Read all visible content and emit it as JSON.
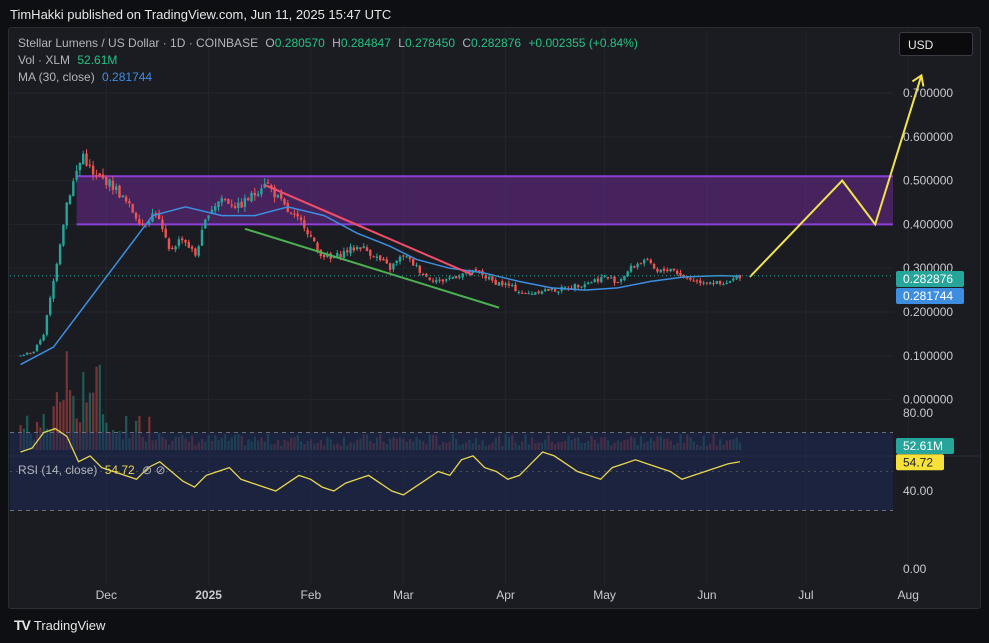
{
  "header": {
    "published": "TimHakki published on TradingView.com, Jun 11, 2025 15:47 UTC"
  },
  "legend": {
    "symbol": "Stellar Lumens / US Dollar · 1D · COINBASE",
    "o_label": "O",
    "o": "0.280570",
    "h_label": "H",
    "h": "0.284847",
    "l_label": "L",
    "l": "0.278450",
    "c_label": "C",
    "c": "0.282876",
    "change": "+0.002355 (+0.84%)",
    "vol_label": "Vol · XLM",
    "vol": "52.61M",
    "ma_label": "MA (30, close)",
    "ma": "0.281744",
    "rsi_label": "RSI (14, close)",
    "rsi": "54.72",
    "rsi_icons": "⊘ ⊘"
  },
  "currency": "USD",
  "footer": {
    "brand": "TradingView"
  },
  "colors": {
    "up": "#26a69a",
    "down": "#ef5350",
    "ma": "#3d8ee0",
    "zone": "#6a2a8e",
    "zone_line": "#8c3fd6",
    "projection": "#f2e34a",
    "rsi": "#e8d64f",
    "trend_red": "#f04e6a",
    "trend_green": "#4caf50"
  },
  "chart_data": [
    {
      "type": "candlestick",
      "title": "Stellar Lumens / US Dollar · 1D · COINBASE",
      "ylim": [
        -0.06,
        0.76
      ],
      "y_ticks": [
        "0.700000",
        "0.600000",
        "0.500000",
        "0.400000",
        "0.300000",
        "0.200000",
        "0.100000",
        "0.000000"
      ],
      "x_ticks": [
        "Dec",
        "2025",
        "Feb",
        "Mar",
        "Apr",
        "May",
        "Jun",
        "Jul",
        "Aug"
      ],
      "price_labels": [
        {
          "text": "0.282876",
          "color": "#26a69a"
        },
        {
          "text": "0.281744",
          "color": "#3d8ee0"
        }
      ],
      "volume_label": "52.61M",
      "series": [
        {
          "name": "XLM/USD close (approx.)",
          "points": [
            [
              "Nov 5",
              0.1
            ],
            [
              "Nov 9",
              0.11
            ],
            [
              "Nov 12",
              0.15
            ],
            [
              "Nov 15",
              0.27
            ],
            [
              "Nov 19",
              0.45
            ],
            [
              "Nov 22",
              0.52
            ],
            [
              "Nov 24",
              0.56
            ],
            [
              "Nov 27",
              0.51
            ],
            [
              "Dec 1",
              0.5
            ],
            [
              "Dec 4",
              0.48
            ],
            [
              "Dec 8",
              0.44
            ],
            [
              "Dec 12",
              0.4
            ],
            [
              "Dec 16",
              0.43
            ],
            [
              "Dec 20",
              0.34
            ],
            [
              "Dec 24",
              0.37
            ],
            [
              "Dec 28",
              0.33
            ],
            [
              "Jan 1",
              0.43
            ],
            [
              "Jan 5",
              0.46
            ],
            [
              "Jan 10",
              0.44
            ],
            [
              "Jan 15",
              0.47
            ],
            [
              "Jan 18",
              0.5
            ],
            [
              "Jan 22",
              0.46
            ],
            [
              "Jan 26",
              0.42
            ],
            [
              "Jan 30",
              0.4
            ],
            [
              "Feb 3",
              0.34
            ],
            [
              "Feb 7",
              0.32
            ],
            [
              "Feb 12",
              0.34
            ],
            [
              "Feb 16",
              0.35
            ],
            [
              "Feb 20",
              0.33
            ],
            [
              "Feb 25",
              0.3
            ],
            [
              "Mar 1",
              0.33
            ],
            [
              "Mar 4",
              0.31
            ],
            [
              "Mar 8",
              0.28
            ],
            [
              "Mar 12",
              0.27
            ],
            [
              "Mar 16",
              0.28
            ],
            [
              "Mar 20",
              0.29
            ],
            [
              "Mar 24",
              0.29
            ],
            [
              "Mar 28",
              0.27
            ],
            [
              "Apr 2",
              0.26
            ],
            [
              "Apr 7",
              0.24
            ],
            [
              "Apr 12",
              0.25
            ],
            [
              "Apr 17",
              0.25
            ],
            [
              "Apr 22",
              0.26
            ],
            [
              "Apr 27",
              0.27
            ],
            [
              "May 1",
              0.28
            ],
            [
              "May 5",
              0.27
            ],
            [
              "May 9",
              0.3
            ],
            [
              "May 13",
              0.32
            ],
            [
              "May 17",
              0.29
            ],
            [
              "May 21",
              0.3
            ],
            [
              "May 25",
              0.28
            ],
            [
              "May 29",
              0.27
            ],
            [
              "Jun 2",
              0.27
            ],
            [
              "Jun 6",
              0.26
            ],
            [
              "Jun 11",
              0.283
            ]
          ]
        },
        {
          "name": "MA (30, close)",
          "points": [
            [
              "Nov 5",
              0.08
            ],
            [
              "Nov 15",
              0.12
            ],
            [
              "Nov 25",
              0.22
            ],
            [
              "Dec 5",
              0.32
            ],
            [
              "Dec 15",
              0.42
            ],
            [
              "Dec 25",
              0.44
            ],
            [
              "Jan 5",
              0.42
            ],
            [
              "Jan 15",
              0.42
            ],
            [
              "Jan 25",
              0.44
            ],
            [
              "Feb 5",
              0.42
            ],
            [
              "Feb 15",
              0.38
            ],
            [
              "Feb 25",
              0.35
            ],
            [
              "Mar 5",
              0.32
            ],
            [
              "Mar 15",
              0.3
            ],
            [
              "Mar 25",
              0.29
            ],
            [
              "Apr 5",
              0.27
            ],
            [
              "Apr 15",
              0.255
            ],
            [
              "Apr 25",
              0.25
            ],
            [
              "May 5",
              0.255
            ],
            [
              "May 15",
              0.27
            ],
            [
              "May 25",
              0.28
            ],
            [
              "Jun 5",
              0.283
            ],
            [
              "Jun 11",
              0.2817
            ]
          ]
        }
      ],
      "zone": [
        0.4,
        0.51
      ],
      "projection": [
        [
          "Jun 14",
          0.28
        ],
        [
          "Jul 12",
          0.5
        ],
        [
          "Jul 22",
          0.4
        ],
        [
          "Aug 5",
          0.74
        ]
      ]
    },
    {
      "type": "line",
      "title": "RSI (14, close)",
      "ylim": [
        0,
        100
      ],
      "y_ticks": [
        "80.00",
        "40.00",
        "0.00"
      ],
      "bands": [
        30,
        70
      ],
      "last_value": "54.72",
      "series": [
        {
          "name": "RSI (14, close)",
          "values": [
            60,
            62,
            70,
            72,
            68,
            55,
            58,
            52,
            50,
            48,
            46,
            52,
            55,
            50,
            45,
            42,
            48,
            50,
            52,
            46,
            44,
            42,
            40,
            44,
            48,
            46,
            42,
            40,
            44,
            46,
            48,
            44,
            40,
            38,
            42,
            46,
            50,
            48,
            56,
            58,
            52,
            50,
            46,
            48,
            54,
            60,
            58,
            54,
            50,
            48,
            46,
            52,
            54,
            56,
            54,
            52,
            50,
            46,
            48,
            50,
            52,
            54,
            55
          ]
        }
      ]
    }
  ]
}
